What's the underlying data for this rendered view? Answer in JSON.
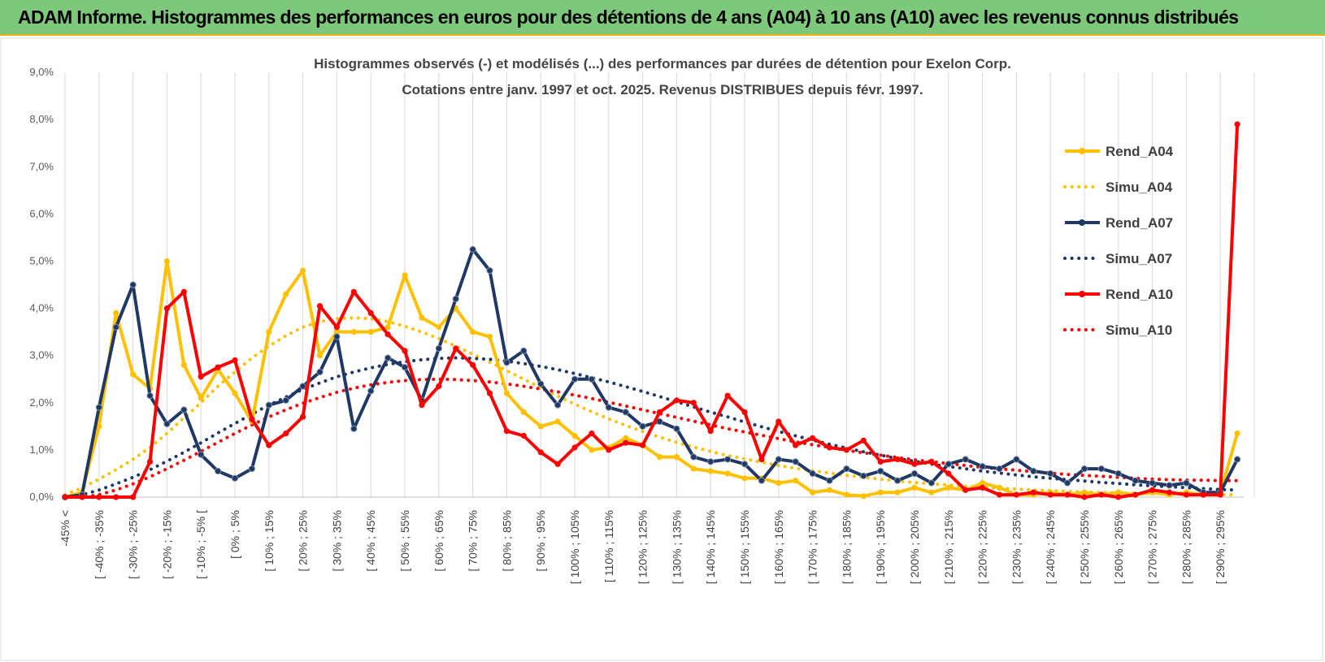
{
  "header": {
    "title": "ADAM Informe. Histogrammes des performances en euros pour des détentions de 4 ans (A04) à 10 ans (A10) avec les revenus connus distribués"
  },
  "chart_data": {
    "type": "line",
    "title_line1": "Histogrammes observés (-) et modélisés (...) des performances par durées de détention pour Exelon Corp.",
    "title_line2": "Cotations entre janv. 1997 et oct. 2025. Revenus DISTRIBUES depuis févr. 1997.",
    "ylim": [
      0,
      9
    ],
    "y_ticks": [
      "0,0%",
      "1,0%",
      "2,0%",
      "3,0%",
      "4,0%",
      "5,0%",
      "6,0%",
      "7,0%",
      "8,0%",
      "9,0%"
    ],
    "x_tick_labels": [
      "-45% <",
      "[ -40% ; -35%",
      "[ -30% ; -25%",
      "[ -20% ; -15%",
      "[ -10% ; -5% [",
      "[ 0% ; 5%",
      "[ 10% ; 15%",
      "[ 20% ; 25%",
      "[ 30% ; 35%",
      "[ 40% ; 45%",
      "[ 50% ; 55%",
      "[ 60% ; 65%",
      "[ 70% ; 75%",
      "[ 80% ; 85%",
      "[ 90% ; 95%",
      "[ 100% ; 105%",
      "[ 110% ; 115%",
      "[ 120% ; 125%",
      "[ 130% ; 135%",
      "[ 140% ; 145%",
      "[ 150% ; 155%",
      "[ 160% ; 165%",
      "[ 170% ; 175%",
      "[ 180% ; 185%",
      "[ 190% ; 195%",
      "[ 200% ; 205%",
      "[ 210% ; 215%",
      "[ 220% ; 225%",
      "[ 230% ; 235%",
      "[ 240% ; 245%",
      "[ 250% ; 255%",
      "[ 260% ; 265%",
      "[ 270% ; 275%",
      "[ 280% ; 285%",
      "[ 290% ; 295%"
    ],
    "n_points": 70,
    "series": [
      {
        "name": "Rend_A04",
        "style": "solid",
        "color": "#ffc000",
        "values": [
          0.0,
          0.1,
          1.5,
          3.9,
          2.6,
          2.3,
          5.0,
          2.8,
          2.1,
          2.7,
          2.2,
          1.6,
          3.5,
          4.3,
          4.8,
          3.0,
          3.5,
          3.5,
          3.5,
          3.6,
          4.7,
          3.8,
          3.6,
          4.0,
          3.5,
          3.4,
          2.2,
          1.8,
          1.5,
          1.6,
          1.3,
          1.0,
          1.05,
          1.25,
          1.1,
          0.85,
          0.85,
          0.6,
          0.55,
          0.5,
          0.4,
          0.4,
          0.3,
          0.35,
          0.1,
          0.15,
          0.05,
          0.02,
          0.1,
          0.1,
          0.2,
          0.1,
          0.2,
          0.15,
          0.3,
          0.2,
          0.05,
          0.05,
          0.1,
          0.05,
          0.1,
          0.05,
          0.1,
          0.05,
          0.1,
          0.05,
          0.1,
          0.05,
          0.08,
          1.35
        ]
      },
      {
        "name": "Simu_A04",
        "style": "dotted",
        "color": "#ffc000",
        "values": [
          0.05,
          0.2,
          0.38,
          0.58,
          0.8,
          1.05,
          1.35,
          1.68,
          2.0,
          2.35,
          2.65,
          2.95,
          3.2,
          3.42,
          3.6,
          3.72,
          3.78,
          3.8,
          3.78,
          3.72,
          3.62,
          3.5,
          3.36,
          3.2,
          3.03,
          2.86,
          2.68,
          2.5,
          2.32,
          2.14,
          1.97,
          1.81,
          1.66,
          1.52,
          1.39,
          1.27,
          1.16,
          1.06,
          0.97,
          0.88,
          0.81,
          0.74,
          0.67,
          0.61,
          0.56,
          0.51,
          0.46,
          0.42,
          0.38,
          0.34,
          0.31,
          0.28,
          0.26,
          0.23,
          0.21,
          0.19,
          0.17,
          0.15,
          0.14,
          0.12,
          0.11,
          0.1,
          0.09,
          0.08,
          0.07,
          0.065,
          0.06,
          0.055,
          0.05,
          0.05
        ]
      },
      {
        "name": "Rend_A07",
        "style": "solid",
        "color": "#1f3864",
        "values": [
          0.0,
          0.05,
          1.9,
          3.6,
          4.5,
          2.15,
          1.55,
          1.85,
          0.9,
          0.55,
          0.4,
          0.6,
          1.95,
          2.05,
          2.35,
          2.65,
          3.4,
          1.45,
          2.25,
          2.95,
          2.75,
          2.05,
          3.15,
          4.2,
          5.25,
          4.8,
          2.85,
          3.1,
          2.4,
          1.95,
          2.5,
          2.5,
          1.9,
          1.8,
          1.5,
          1.6,
          1.45,
          0.85,
          0.75,
          0.8,
          0.7,
          0.35,
          0.8,
          0.75,
          0.5,
          0.35,
          0.6,
          0.45,
          0.55,
          0.35,
          0.5,
          0.3,
          0.7,
          0.8,
          0.65,
          0.6,
          0.8,
          0.55,
          0.5,
          0.3,
          0.6,
          0.6,
          0.5,
          0.35,
          0.3,
          0.25,
          0.3,
          0.1,
          0.1,
          0.8
        ]
      },
      {
        "name": "Simu_A07",
        "style": "dotted",
        "color": "#1f3864",
        "values": [
          0.0,
          0.05,
          0.15,
          0.28,
          0.42,
          0.58,
          0.76,
          0.95,
          1.15,
          1.36,
          1.56,
          1.76,
          1.95,
          2.12,
          2.28,
          2.42,
          2.55,
          2.65,
          2.74,
          2.81,
          2.87,
          2.91,
          2.94,
          2.95,
          2.94,
          2.92,
          2.88,
          2.83,
          2.77,
          2.7,
          2.62,
          2.53,
          2.44,
          2.34,
          2.24,
          2.13,
          2.02,
          1.91,
          1.8,
          1.7,
          1.59,
          1.49,
          1.39,
          1.3,
          1.21,
          1.12,
          1.04,
          0.96,
          0.89,
          0.82,
          0.76,
          0.7,
          0.65,
          0.6,
          0.55,
          0.51,
          0.47,
          0.43,
          0.4,
          0.37,
          0.34,
          0.31,
          0.29,
          0.26,
          0.24,
          0.22,
          0.2,
          0.18,
          0.16,
          0.15
        ]
      },
      {
        "name": "Rend_A10",
        "style": "solid",
        "color": "#ff0000",
        "values": [
          0.0,
          0.0,
          0.0,
          0.0,
          0.0,
          0.75,
          4.0,
          4.35,
          2.55,
          2.75,
          2.9,
          1.65,
          1.1,
          1.35,
          1.7,
          4.05,
          3.6,
          4.35,
          3.9,
          3.45,
          3.1,
          1.95,
          2.35,
          3.15,
          2.8,
          2.2,
          1.4,
          1.3,
          0.95,
          0.7,
          1.05,
          1.35,
          1.0,
          1.15,
          1.1,
          1.8,
          2.05,
          2.0,
          1.4,
          2.15,
          1.8,
          0.8,
          1.6,
          1.1,
          1.25,
          1.05,
          1.0,
          1.2,
          0.75,
          0.8,
          0.7,
          0.75,
          0.5,
          0.15,
          0.2,
          0.05,
          0.05,
          0.1,
          0.05,
          0.05,
          0.0,
          0.05,
          0.0,
          0.05,
          0.15,
          0.1,
          0.05,
          0.05,
          0.05,
          7.9
        ]
      },
      {
        "name": "Simu_A10",
        "style": "dotted",
        "color": "#ff0000",
        "values": [
          0.0,
          0.0,
          0.05,
          0.15,
          0.28,
          0.43,
          0.6,
          0.78,
          0.97,
          1.16,
          1.35,
          1.53,
          1.7,
          1.85,
          1.99,
          2.11,
          2.22,
          2.31,
          2.38,
          2.43,
          2.47,
          2.49,
          2.5,
          2.49,
          2.47,
          2.44,
          2.4,
          2.35,
          2.29,
          2.23,
          2.16,
          2.09,
          2.01,
          1.93,
          1.85,
          1.77,
          1.69,
          1.61,
          1.53,
          1.45,
          1.38,
          1.31,
          1.24,
          1.17,
          1.11,
          1.05,
          0.99,
          0.94,
          0.89,
          0.84,
          0.79,
          0.75,
          0.71,
          0.67,
          0.63,
          0.6,
          0.57,
          0.54,
          0.51,
          0.48,
          0.46,
          0.44,
          0.42,
          0.4,
          0.38,
          0.37,
          0.36,
          0.36,
          0.35,
          0.35
        ]
      }
    ],
    "legend_position": "right",
    "grid": "vertical"
  }
}
